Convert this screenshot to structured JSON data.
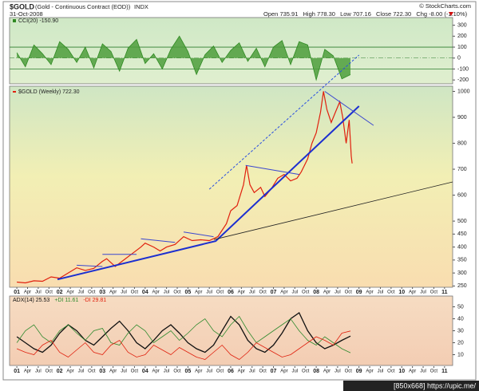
{
  "header": {
    "title": "$GOLD",
    "subtitle": "(Gold - Continuous Contract (EOD))",
    "exchange": "INDX",
    "date": "31-Oct-2008",
    "source": "© StockCharts.com",
    "quote": [
      {
        "label": "Open",
        "value": "735.91"
      },
      {
        "label": "High",
        "value": "778.30"
      },
      {
        "label": "Low",
        "value": "707.16"
      },
      {
        "label": "Close",
        "value": "722.30"
      },
      {
        "label": "Chg",
        "value": "-8.00 (-1.10%)"
      }
    ]
  },
  "watermark": "[850x668] https://upic.me/",
  "chart_data": [
    {
      "type": "area",
      "label": "CCI(20) -150.90",
      "color": "#2f8a22",
      "fill": "#4e9e3c",
      "x": [
        2001.0,
        2001.2,
        2001.4,
        2001.6,
        2001.8,
        2002.0,
        2002.2,
        2002.4,
        2002.6,
        2002.8,
        2003.0,
        2003.2,
        2003.4,
        2003.6,
        2003.8,
        2004.0,
        2004.2,
        2004.4,
        2004.6,
        2004.8,
        2005.0,
        2005.2,
        2005.4,
        2005.6,
        2005.8,
        2006.0,
        2006.2,
        2006.4,
        2006.6,
        2006.8,
        2007.0,
        2007.2,
        2007.4,
        2007.6,
        2007.8,
        2008.0,
        2008.2,
        2008.4,
        2008.6,
        2008.8
      ],
      "values": [
        50,
        -80,
        120,
        40,
        -60,
        150,
        80,
        -40,
        100,
        -90,
        130,
        60,
        -120,
        90,
        170,
        -50,
        40,
        -100,
        80,
        200,
        60,
        -150,
        30,
        110,
        -40,
        70,
        140,
        -30,
        90,
        -80,
        100,
        160,
        -60,
        150,
        120,
        -200,
        80,
        20,
        -190,
        -150.9
      ],
      "ylim": [
        -235,
        370
      ],
      "yticks": [
        300,
        200,
        100,
        0,
        -100,
        -200
      ],
      "hlines": [
        100,
        -100
      ],
      "zero_line": 0
    },
    {
      "type": "line",
      "label": "$GOLD (Weekly) 722.30",
      "color": "#e0200e",
      "x": [
        2001.0,
        2001.2,
        2001.4,
        2001.6,
        2001.8,
        2002.0,
        2002.2,
        2002.4,
        2002.6,
        2002.8,
        2003.0,
        2003.1,
        2003.3,
        2003.5,
        2003.7,
        2003.9,
        2004.0,
        2004.2,
        2004.35,
        2004.5,
        2004.7,
        2004.9,
        2005.1,
        2005.3,
        2005.5,
        2005.7,
        2005.9,
        2006.0,
        2006.15,
        2006.3,
        2006.37,
        2006.45,
        2006.55,
        2006.7,
        2006.8,
        2006.95,
        2007.1,
        2007.25,
        2007.4,
        2007.55,
        2007.65,
        2007.8,
        2007.9,
        2008.0,
        2008.1,
        2008.17,
        2008.25,
        2008.35,
        2008.45,
        2008.55,
        2008.62,
        2008.7,
        2008.77,
        2008.82,
        2008.84
      ],
      "values": [
        265,
        262,
        270,
        268,
        285,
        280,
        300,
        320,
        310,
        318,
        345,
        355,
        325,
        350,
        375,
        400,
        415,
        400,
        385,
        400,
        410,
        440,
        425,
        428,
        425,
        440,
        490,
        540,
        560,
        640,
        715,
        640,
        610,
        630,
        595,
        625,
        665,
        680,
        655,
        665,
        690,
        740,
        800,
        840,
        920,
        1000,
        930,
        880,
        920,
        960,
        900,
        800,
        890,
        750,
        722.3
      ],
      "ylim": [
        245,
        1020
      ],
      "yticks": [
        1000,
        900,
        800,
        700,
        600,
        500,
        450,
        400,
        350,
        300,
        250
      ],
      "xlim": [
        2000.83,
        2011.19
      ],
      "xticks": [
        {
          "value": 2001,
          "label": "01"
        },
        {
          "value": 2001.25,
          "label": "Apr"
        },
        {
          "value": 2001.5,
          "label": "Jul"
        },
        {
          "value": 2001.75,
          "label": "Oct"
        },
        {
          "value": 2002,
          "label": "02"
        },
        {
          "value": 2002.25,
          "label": "Apr"
        },
        {
          "value": 2002.5,
          "label": "Jul"
        },
        {
          "value": 2002.75,
          "label": "Oct"
        },
        {
          "value": 2003,
          "label": "03"
        },
        {
          "value": 2003.25,
          "label": "Apr"
        },
        {
          "value": 2003.5,
          "label": "Jul"
        },
        {
          "value": 2003.75,
          "label": "Oct"
        },
        {
          "value": 2004,
          "label": "04"
        },
        {
          "value": 2004.25,
          "label": "Apr"
        },
        {
          "value": 2004.5,
          "label": "Jul"
        },
        {
          "value": 2004.75,
          "label": "Oct"
        },
        {
          "value": 2005,
          "label": "05"
        },
        {
          "value": 2005.25,
          "label": "Apr"
        },
        {
          "value": 2005.5,
          "label": "Jul"
        },
        {
          "value": 2005.75,
          "label": "Oct"
        },
        {
          "value": 2006,
          "label": "06"
        },
        {
          "value": 2006.25,
          "label": "Apr"
        },
        {
          "value": 2006.5,
          "label": "Jul"
        },
        {
          "value": 2006.75,
          "label": "Oct"
        },
        {
          "value": 2007,
          "label": "07"
        },
        {
          "value": 2007.25,
          "label": "Apr"
        },
        {
          "value": 2007.5,
          "label": "Jul"
        },
        {
          "value": 2007.75,
          "label": "Oct"
        },
        {
          "value": 2008,
          "label": "08"
        },
        {
          "value": 2008.25,
          "label": "Apr"
        },
        {
          "value": 2008.5,
          "label": "Jul"
        },
        {
          "value": 2008.75,
          "label": "Oct"
        },
        {
          "value": 2009,
          "label": "09"
        },
        {
          "value": 2009.25,
          "label": "Apr"
        },
        {
          "value": 2009.5,
          "label": "Jul"
        },
        {
          "value": 2009.75,
          "label": "Oct"
        },
        {
          "value": 2010,
          "label": "10"
        },
        {
          "value": 2010.25,
          "label": "Apr"
        },
        {
          "value": 2010.5,
          "label": "Jul"
        },
        {
          "value": 2010.75,
          "label": "Oct"
        },
        {
          "value": 2011,
          "label": "11"
        }
      ],
      "trendlines": [
        {
          "x": [
            2001.95,
            2005.65,
            2009.0
          ],
          "values": [
            275,
            423,
            943
          ],
          "color": "#1c2fd0",
          "width": 2,
          "style": "solid"
        },
        {
          "x": [
            2005.5,
            2009.0
          ],
          "values": [
            623,
            1140
          ],
          "color": "#2a4fe0",
          "width": 1,
          "style": "dashed"
        },
        {
          "x": [
            2005.61,
            2011.19
          ],
          "values": [
            429,
            651
          ],
          "color": "#222222",
          "width": 0.8,
          "style": "solid"
        },
        {
          "x": [
            2002.4,
            2003.0
          ],
          "values": [
            330,
            325
          ],
          "color": "#3a46d0",
          "width": 1,
          "style": "solid"
        },
        {
          "x": [
            2003.0,
            2003.8
          ],
          "values": [
            372,
            372
          ],
          "color": "#3a46d0",
          "width": 1,
          "style": "solid"
        },
        {
          "x": [
            2003.9,
            2004.7
          ],
          "values": [
            432,
            418
          ],
          "color": "#3a46d0",
          "width": 1,
          "style": "solid"
        },
        {
          "x": [
            2004.9,
            2005.6
          ],
          "values": [
            458,
            440
          ],
          "color": "#3a46d0",
          "width": 1,
          "style": "solid"
        },
        {
          "x": [
            2006.35,
            2007.6
          ],
          "values": [
            715,
            680
          ],
          "color": "#3a46d0",
          "width": 1,
          "style": "solid"
        },
        {
          "x": [
            2008.2,
            2009.34
          ],
          "values": [
            1000,
            869
          ],
          "color": "#3a46d0",
          "width": 1,
          "style": "solid"
        }
      ]
    },
    {
      "type": "line",
      "x": [
        2001.0,
        2001.2,
        2001.4,
        2001.6,
        2001.8,
        2002.0,
        2002.2,
        2002.4,
        2002.6,
        2002.8,
        2003.0,
        2003.2,
        2003.4,
        2003.6,
        2003.8,
        2004.0,
        2004.2,
        2004.4,
        2004.6,
        2004.8,
        2005.0,
        2005.2,
        2005.4,
        2005.6,
        2005.8,
        2006.0,
        2006.2,
        2006.4,
        2006.6,
        2006.8,
        2007.0,
        2007.2,
        2007.4,
        2007.6,
        2007.8,
        2008.0,
        2008.2,
        2008.4,
        2008.6,
        2008.8
      ],
      "series": [
        {
          "name": "ADX(14) 25.53",
          "color": "#111111",
          "values": [
            25,
            20,
            15,
            12,
            18,
            28,
            35,
            30,
            22,
            18,
            25,
            32,
            38,
            30,
            20,
            15,
            22,
            30,
            35,
            28,
            20,
            15,
            12,
            18,
            30,
            42,
            35,
            22,
            15,
            12,
            18,
            28,
            40,
            45,
            30,
            20,
            15,
            18,
            22,
            25.53
          ]
        },
        {
          "name": "+DI 11.61",
          "color": "#2e8a2e",
          "values": [
            20,
            30,
            35,
            25,
            20,
            30,
            35,
            28,
            22,
            30,
            32,
            20,
            18,
            28,
            35,
            30,
            20,
            25,
            30,
            22,
            28,
            35,
            40,
            30,
            25,
            35,
            42,
            30,
            20,
            25,
            30,
            35,
            40,
            30,
            22,
            18,
            25,
            20,
            15,
            11.61
          ]
        },
        {
          "name": "-DI 29.81",
          "color": "#e0200e",
          "values": [
            15,
            12,
            10,
            18,
            22,
            12,
            8,
            14,
            20,
            12,
            10,
            18,
            22,
            12,
            8,
            10,
            18,
            14,
            10,
            16,
            12,
            8,
            6,
            12,
            18,
            10,
            6,
            12,
            20,
            16,
            12,
            8,
            10,
            15,
            20,
            25,
            22,
            18,
            28,
            29.81
          ]
        }
      ],
      "ylim": [
        1,
        59
      ],
      "yticks": [
        50,
        40,
        30,
        20,
        10
      ]
    }
  ]
}
